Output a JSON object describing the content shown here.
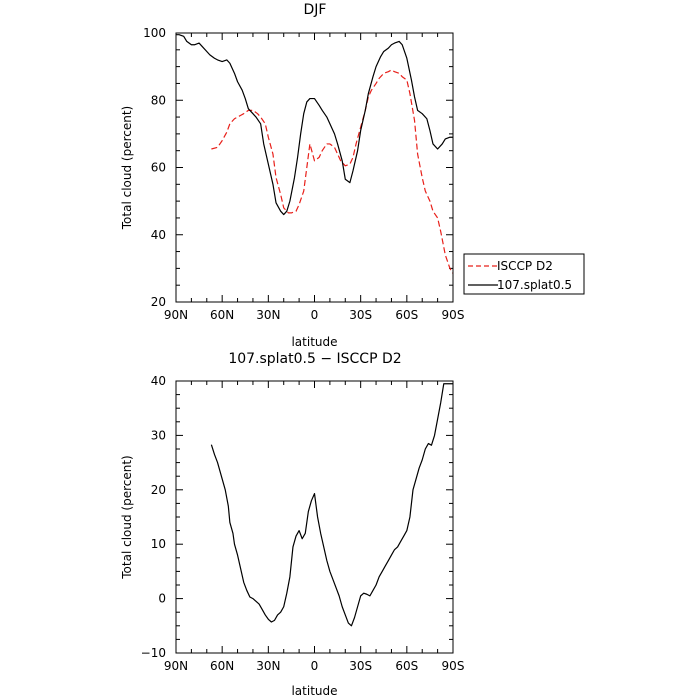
{
  "chart_data": [
    {
      "type": "line",
      "title": "DJF",
      "xlabel": "latitude",
      "ylabel": "Total cloud (percent)",
      "xlim": [
        90,
        -90
      ],
      "ylim": [
        20,
        100
      ],
      "xticks": [
        90,
        60,
        30,
        0,
        -30,
        -60,
        -90
      ],
      "xtick_labels": [
        "90N",
        "60N",
        "30N",
        "0",
        "30S",
        "60S",
        "90S"
      ],
      "yticks": [
        20,
        40,
        60,
        80,
        100
      ],
      "ytick_labels": [
        "20",
        "40",
        "60",
        "80",
        "100"
      ],
      "legend_position": "right, outside axes",
      "series": [
        {
          "name": "ISCCP D2",
          "color": "#e8201a",
          "dash": "dashed",
          "x": [
            67,
            63,
            60,
            57,
            55,
            52,
            50,
            48,
            46,
            43,
            40,
            37,
            35,
            32,
            30,
            27,
            25,
            22,
            20,
            17,
            15,
            12,
            10,
            7,
            5,
            3,
            0,
            -3,
            -5,
            -8,
            -10,
            -13,
            -15,
            -17,
            -20,
            -23,
            -25,
            -27,
            -30,
            -33,
            -35,
            -37,
            -40,
            -42,
            -45,
            -48,
            -50,
            -52,
            -55,
            -57,
            -60,
            -62,
            -65,
            -67,
            -70,
            -72,
            -75,
            -77,
            -80,
            -82,
            -85,
            -88,
            -90
          ],
          "values": [
            65.5,
            66,
            68,
            70.5,
            73,
            74.5,
            75,
            75.5,
            76,
            77,
            77,
            76,
            75,
            73,
            69,
            64,
            57,
            52,
            48,
            46.5,
            46.5,
            47,
            49,
            53,
            60,
            67,
            62,
            63,
            65,
            67,
            67,
            66,
            64,
            62,
            60.5,
            61,
            63,
            67,
            72,
            77,
            81,
            83,
            85,
            86.5,
            88,
            88.5,
            89,
            88.5,
            88,
            87,
            86,
            82,
            74,
            64,
            57,
            53,
            50,
            47,
            45,
            41,
            34,
            30,
            28.5
          ]
        },
        {
          "name": "107.splat0.5",
          "color": "#000000",
          "dash": "solid",
          "x": [
            90,
            88,
            85,
            83,
            80,
            78,
            75,
            73,
            70,
            68,
            65,
            63,
            60,
            57,
            55,
            52,
            50,
            47,
            45,
            43,
            40,
            38,
            35,
            33,
            30,
            27,
            25,
            22,
            20,
            18,
            16,
            13,
            11,
            9,
            7,
            5,
            3,
            0,
            -3,
            -5,
            -8,
            -10,
            -13,
            -15,
            -18,
            -20,
            -23,
            -25,
            -28,
            -30,
            -33,
            -35,
            -38,
            -40,
            -43,
            -45,
            -48,
            -50,
            -52,
            -55,
            -57,
            -60,
            -63,
            -65,
            -67,
            -70,
            -73,
            -75,
            -77,
            -80,
            -83,
            -85,
            -88,
            -90
          ],
          "values": [
            99.5,
            99.5,
            99,
            97.5,
            96.5,
            96.5,
            97,
            96,
            94.5,
            93.5,
            92.5,
            92,
            91.5,
            92,
            91,
            88,
            85.5,
            83,
            80.5,
            77.5,
            76,
            75,
            73,
            67,
            61,
            55,
            49.5,
            47,
            46,
            47,
            50,
            57,
            63,
            70,
            76,
            79.5,
            80.5,
            80.5,
            78.5,
            77,
            75,
            73,
            70,
            67,
            62,
            56.5,
            55.5,
            59,
            65,
            71,
            77,
            82,
            87,
            90,
            93,
            94.5,
            95.5,
            96.5,
            97,
            97.5,
            96.5,
            92.5,
            86,
            81,
            77,
            76,
            74.5,
            71,
            67,
            65.5,
            67,
            68.5,
            69,
            69
          ]
        }
      ]
    },
    {
      "type": "line",
      "title": "107.splat0.5 − ISCCP D2",
      "xlabel": "latitude",
      "ylabel": "Total cloud (percent)",
      "xlim": [
        90,
        -90
      ],
      "ylim": [
        -10,
        40
      ],
      "xticks": [
        90,
        60,
        30,
        0,
        -30,
        -60,
        -90
      ],
      "xtick_labels": [
        "90N",
        "60N",
        "30N",
        "0",
        "30S",
        "60S",
        "90S"
      ],
      "yticks": [
        -10,
        0,
        10,
        20,
        30,
        40
      ],
      "ytick_labels": [
        "−10",
        "0",
        "10",
        "20",
        "30",
        "40"
      ],
      "series": [
        {
          "color": "#000000",
          "dash": "solid",
          "x": [
            67,
            65,
            63,
            60,
            58,
            56,
            55,
            53,
            52,
            50,
            48,
            46,
            44,
            42,
            40,
            38,
            36,
            34,
            32,
            30,
            28,
            26,
            24,
            22,
            20,
            18,
            16,
            14,
            12,
            10,
            8,
            6,
            4,
            2,
            0,
            -2,
            -4,
            -6,
            -8,
            -10,
            -12,
            -14,
            -16,
            -18,
            -20,
            -22,
            -24,
            -26,
            -28,
            -30,
            -32,
            -34,
            -36,
            -38,
            -40,
            -42,
            -44,
            -46,
            -48,
            -50,
            -52,
            -54,
            -56,
            -58,
            -60,
            -62,
            -64,
            -66,
            -68,
            -70,
            -72,
            -74,
            -76,
            -78,
            -80,
            -82,
            -84,
            -86,
            -88,
            -90
          ],
          "values": [
            28.3,
            26.5,
            25,
            22,
            20,
            17,
            14,
            12,
            10,
            8,
            5.5,
            3,
            1.5,
            0.3,
            0,
            -0.5,
            -1,
            -2,
            -3,
            -3.8,
            -4.3,
            -4,
            -3,
            -2.5,
            -1.5,
            1,
            4,
            9.5,
            11.5,
            12.5,
            11,
            12,
            16,
            18,
            19.3,
            15,
            12,
            9.5,
            7,
            5,
            3.5,
            2,
            0.5,
            -1.5,
            -3,
            -4.5,
            -5,
            -3.5,
            -1.5,
            0.5,
            1,
            0.8,
            0.5,
            1.5,
            2.5,
            4,
            5,
            6,
            7,
            8,
            9,
            9.5,
            10.5,
            11.5,
            12.5,
            15,
            20,
            22,
            24,
            25.5,
            27.5,
            28.5,
            28.2,
            30,
            33,
            36,
            39.5,
            39.5,
            39.5,
            39.5
          ]
        }
      ]
    }
  ]
}
